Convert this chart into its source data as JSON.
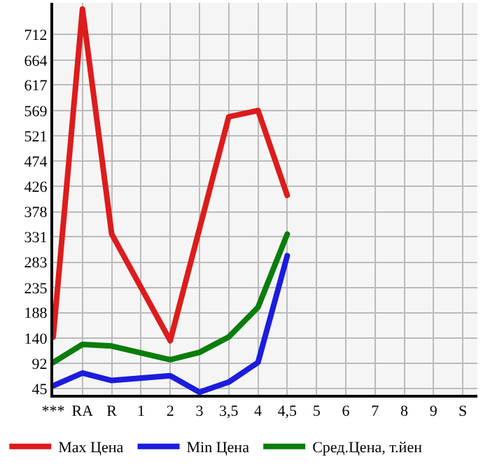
{
  "chart_data": {
    "type": "line",
    "categories": [
      "***",
      "RA",
      "R",
      "1",
      "2",
      "3",
      "3,5",
      "4",
      "4,5",
      "5",
      "6",
      "7",
      "8",
      "9",
      "S"
    ],
    "series": [
      {
        "name": "Max Цена",
        "color": "#dd1c1c",
        "values": [
          142,
          760,
          336,
          null,
          135,
          null,
          557,
          569,
          409,
          null,
          null,
          null,
          null,
          null,
          null
        ]
      },
      {
        "name": "Min Цена",
        "color": "#1c1cdd",
        "values": [
          50,
          74,
          60,
          null,
          69,
          38,
          57,
          94,
          295,
          null,
          null,
          null,
          null,
          null,
          null
        ]
      },
      {
        "name": "Сред.Цена, т.йен",
        "color": "#0a7d0a",
        "values": [
          94,
          128,
          125,
          null,
          99,
          113,
          142,
          198,
          336,
          null,
          null,
          null,
          null,
          null,
          null
        ]
      }
    ],
    "ylim": [
      33,
      772
    ],
    "yticks": [
      45,
      92,
      140,
      188,
      235,
      283,
      331,
      378,
      426,
      474,
      521,
      569,
      617,
      664,
      712
    ],
    "grid": true,
    "legend": "bottom",
    "marker": "none",
    "line_style": "solid"
  }
}
